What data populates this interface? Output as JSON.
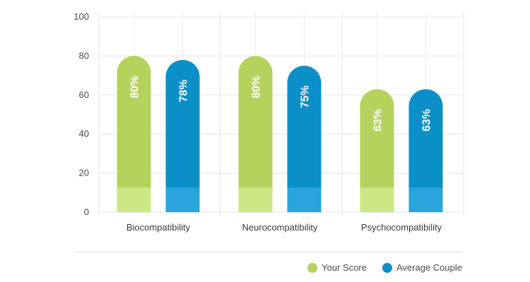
{
  "chart_data": {
    "type": "bar",
    "categories": [
      "Biocompatibility",
      "Neurocompatibility",
      "Psychocompatibility"
    ],
    "series": [
      {
        "name": "Your Score",
        "values": [
          80,
          80,
          63
        ],
        "labels": [
          "80%",
          "80%",
          "63%"
        ],
        "color": "#b5d25c",
        "base_color": "#cde686"
      },
      {
        "name": "Average Couple",
        "values": [
          78,
          75,
          63
        ],
        "labels": [
          "78%",
          "75%",
          "63%"
        ],
        "color": "#0a8fc9",
        "base_color": "#2aa4dc"
      }
    ],
    "ylim": [
      0,
      100
    ],
    "yticks": [
      "0",
      "20",
      "40",
      "60",
      "80",
      "100"
    ],
    "grid": true,
    "legend_position": "bottom-right",
    "title": "",
    "xlabel": "",
    "ylabel": ""
  }
}
